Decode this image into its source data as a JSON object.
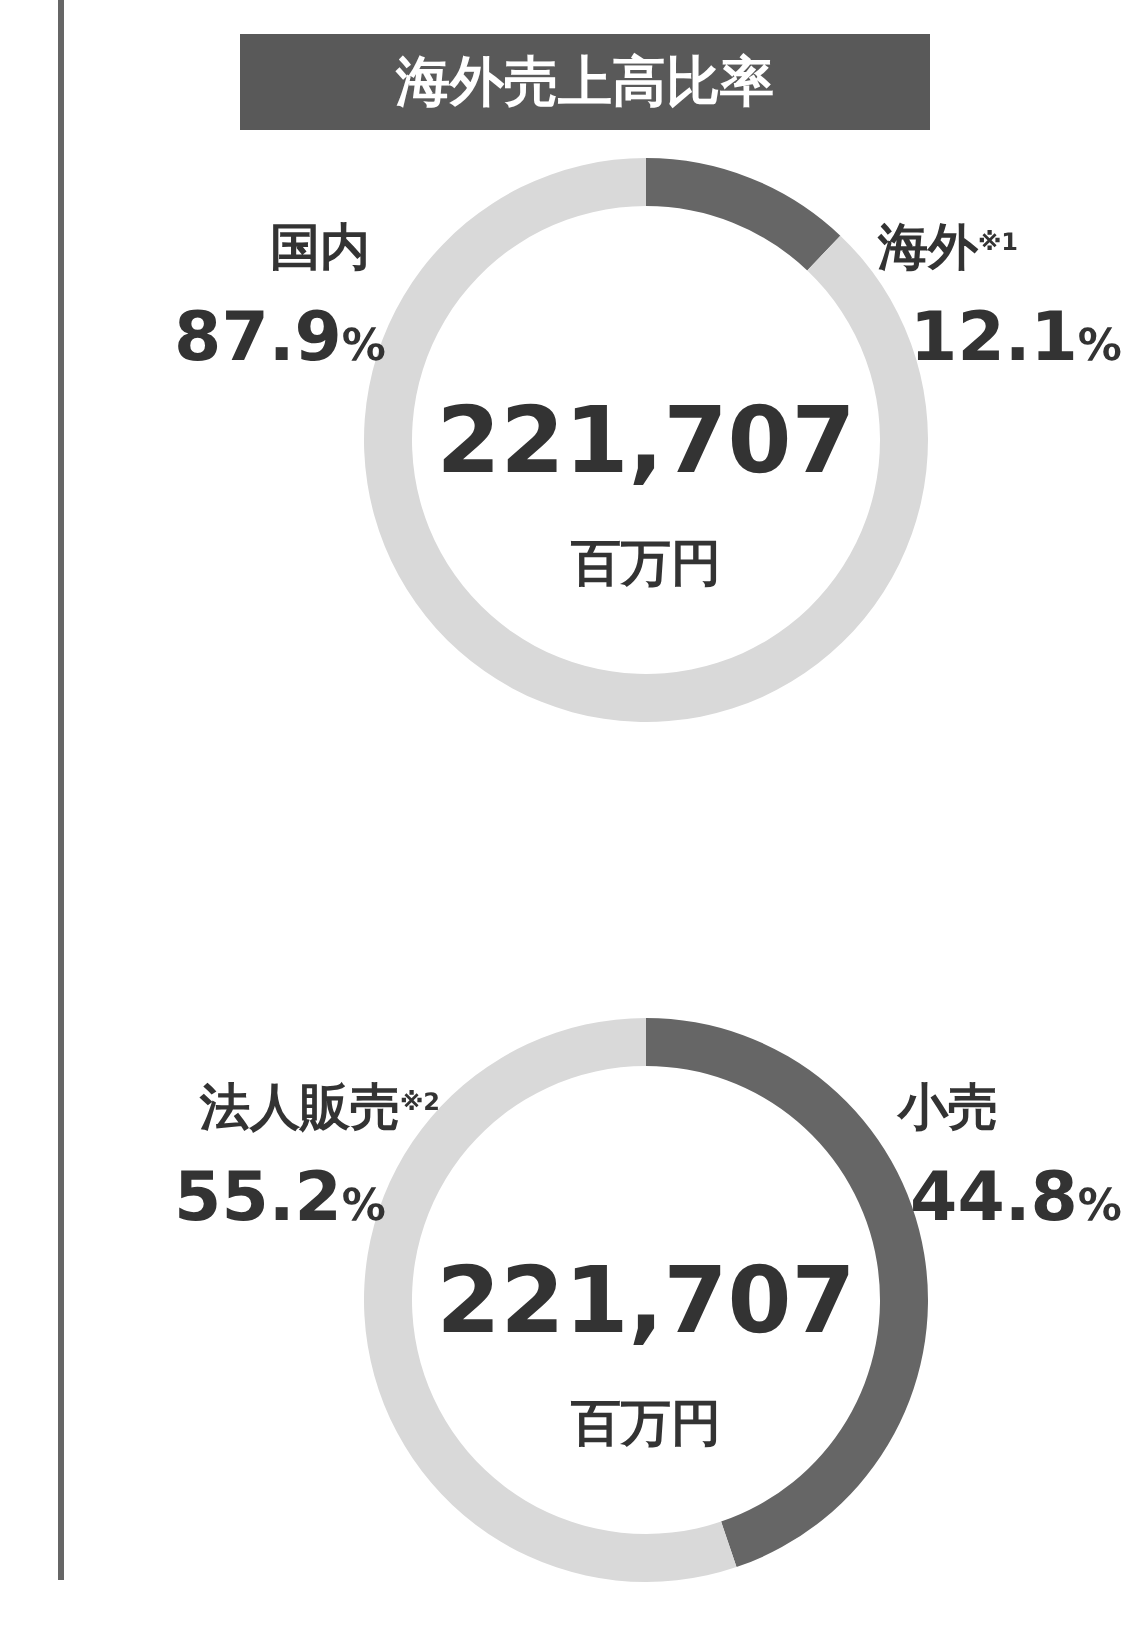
{
  "chart_data": [
    {
      "type": "donut",
      "title": "海外売上高比率",
      "categories": [
        "海外$^{※1}$",
        "国内"
      ],
      "values": [
        12.1,
        87.9
      ],
      "colors": [
        "#666666",
        "#d9d9d9"
      ],
      "value_labels": [
        "12.1%",
        "87.9%"
      ],
      "annotations": [
        "221,707",
        "百万円"
      ],
      "legend": false
    },
    {
      "type": "donut",
      "categories": [
        "小売",
        "法人販売$^{※2}$"
      ],
      "values": [
        44.8,
        55.2
      ],
      "colors": [
        "#666666",
        "#d9d9d9"
      ],
      "value_labels": [
        "44.8%",
        "55.2%"
      ],
      "annotations": [
        "221,707",
        "百万円"
      ],
      "legend": false
    }
  ]
}
